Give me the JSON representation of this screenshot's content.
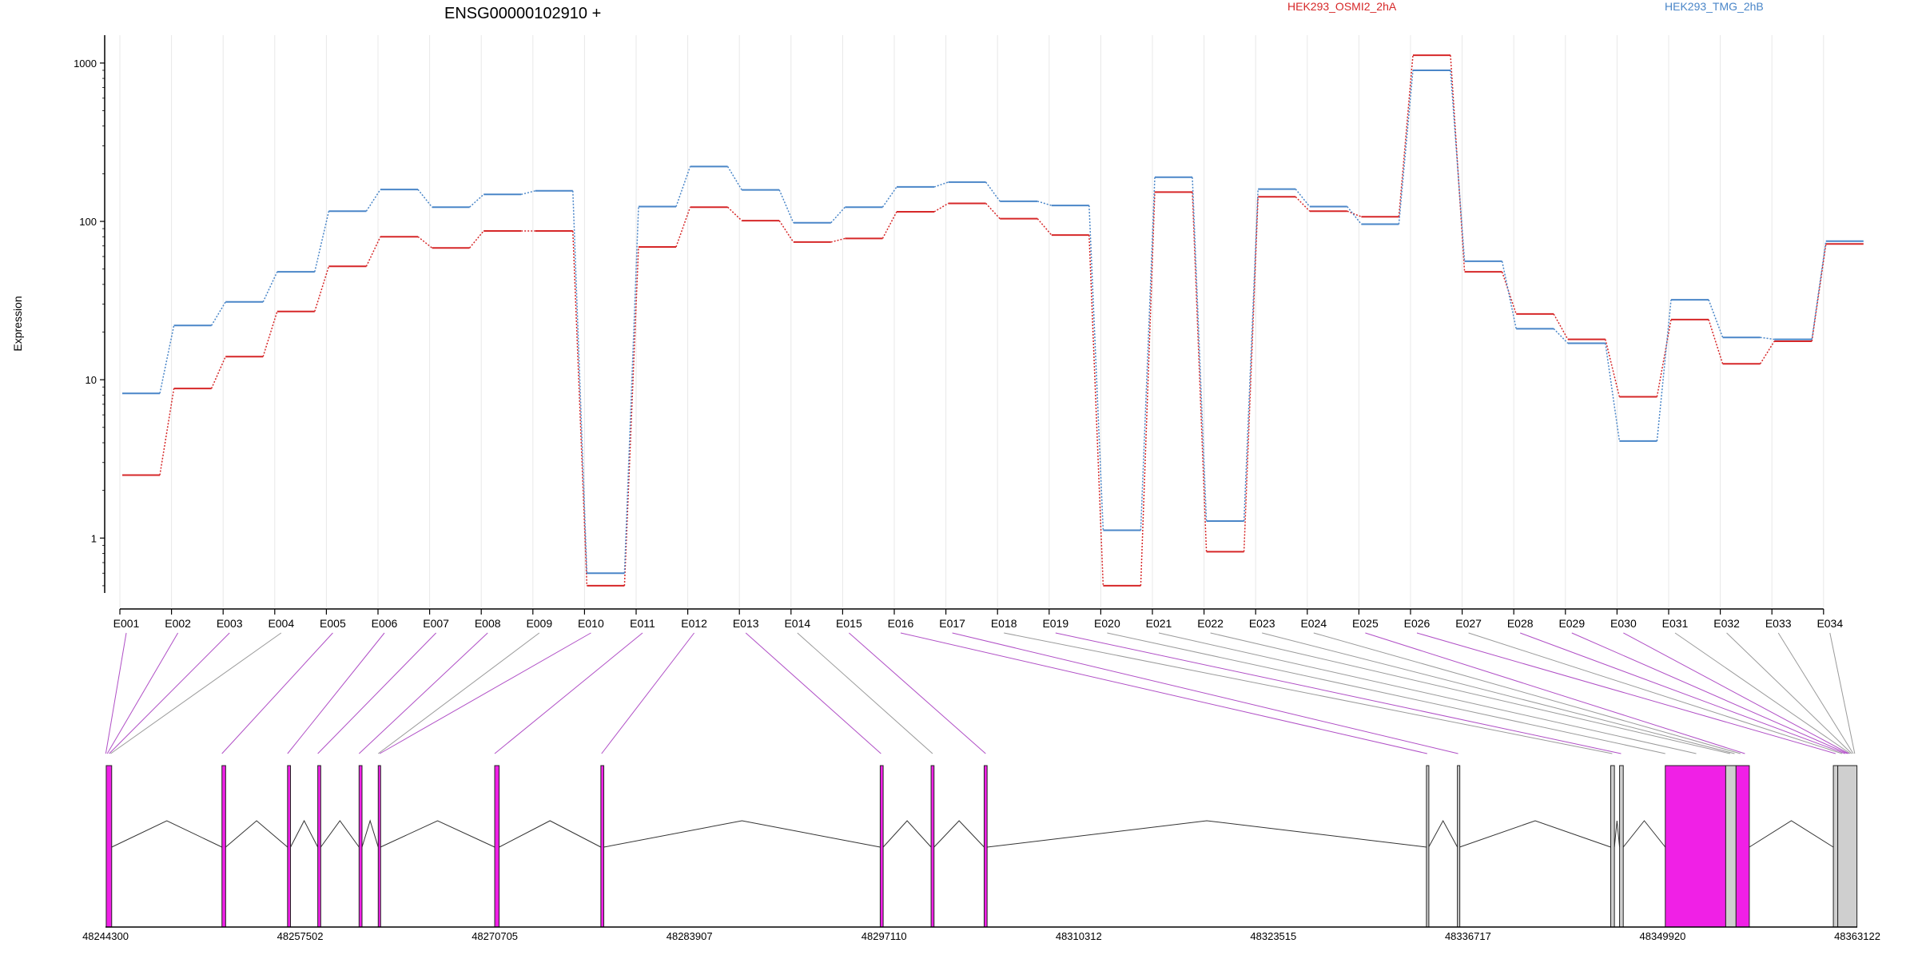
{
  "chart_data": {
    "type": "line",
    "title": "ENSG00000102910 +",
    "xlabel": "",
    "ylabel": "Expression",
    "y_scale": "log",
    "ylim": [
      0.45,
      1500
    ],
    "y_ticks": [
      {
        "value": 1,
        "label": "1"
      },
      {
        "value": 10,
        "label": "10"
      },
      {
        "value": 100,
        "label": "100"
      },
      {
        "value": 1000,
        "label": "1000"
      }
    ],
    "legend_placement": "top",
    "grid": "vertical",
    "categories": [
      "E001",
      "E002",
      "E003",
      "E004",
      "E005",
      "E006",
      "E007",
      "E008",
      "E009",
      "E010",
      "E011",
      "E012",
      "E013",
      "E014",
      "E015",
      "E016",
      "E017",
      "E018",
      "E019",
      "E020",
      "E021",
      "E022",
      "E023",
      "E024",
      "E025",
      "E026",
      "E027",
      "E028",
      "E029",
      "E030",
      "E031",
      "E032",
      "E033",
      "E034"
    ],
    "series": [
      {
        "name": "HEK293_OSMI2_2hA",
        "color": "#d62728",
        "values": [
          2.5,
          8.8,
          14,
          27,
          52,
          80,
          68,
          87,
          87,
          0.5,
          69,
          123,
          101,
          74,
          78,
          115,
          130,
          104,
          82,
          0.5,
          153,
          0.82,
          143,
          116,
          107,
          1120,
          48,
          26,
          18,
          7.8,
          24,
          12.6,
          17.5,
          72
        ]
      },
      {
        "name": "HEK293_TMG_2hB",
        "color": "#4a86c8",
        "values": [
          8.2,
          22,
          31,
          48,
          116,
          159,
          123,
          148,
          156,
          0.6,
          124,
          222,
          158,
          98,
          123,
          165,
          177,
          134,
          126,
          1.12,
          190,
          1.28,
          160,
          124,
          96,
          900,
          56,
          21,
          17,
          4.1,
          32,
          18.5,
          18,
          75
        ]
      }
    ],
    "exon_mapping_colors": [
      "purple",
      "purple",
      "purple",
      "gray",
      "purple",
      "purple",
      "purple",
      "purple",
      "gray",
      "purple",
      "purple",
      "purple",
      "purple",
      "gray",
      "purple",
      "purple",
      "purple",
      "gray",
      "purple",
      "gray",
      "gray",
      "gray",
      "gray",
      "gray",
      "purple",
      "purple",
      "gray",
      "purple",
      "purple",
      "purple",
      "gray",
      "gray",
      "gray",
      "gray"
    ],
    "genomic_axis": {
      "range": [
        48244300,
        48363122
      ],
      "ticks": [
        "48244300",
        "48257502",
        "48270705",
        "48283907",
        "48297110",
        "48310312",
        "48323515",
        "48336717",
        "48349920",
        "48363122"
      ]
    },
    "gene_model": {
      "exons": [
        {
          "start": 48244350,
          "end": 48244720,
          "fill": "magenta"
        },
        {
          "start": 48252200,
          "end": 48252450,
          "fill": "magenta"
        },
        {
          "start": 48256650,
          "end": 48256850,
          "fill": "magenta"
        },
        {
          "start": 48258700,
          "end": 48258900,
          "fill": "magenta"
        },
        {
          "start": 48261500,
          "end": 48261700,
          "fill": "magenta"
        },
        {
          "start": 48262800,
          "end": 48262950,
          "fill": "magenta"
        },
        {
          "start": 48270700,
          "end": 48271000,
          "fill": "magenta"
        },
        {
          "start": 48277900,
          "end": 48278100,
          "fill": "magenta"
        },
        {
          "start": 48296850,
          "end": 48297050,
          "fill": "magenta"
        },
        {
          "start": 48300300,
          "end": 48300500,
          "fill": "magenta"
        },
        {
          "start": 48303900,
          "end": 48304100,
          "fill": "magenta"
        },
        {
          "start": 48333900,
          "end": 48334050,
          "fill": "gray"
        },
        {
          "start": 48336000,
          "end": 48336150,
          "fill": "gray"
        },
        {
          "start": 48346400,
          "end": 48346650,
          "fill": "gray"
        },
        {
          "start": 48347000,
          "end": 48347250,
          "fill": "gray"
        },
        {
          "start": 48350100,
          "end": 48354200,
          "fill": "magenta"
        },
        {
          "start": 48354200,
          "end": 48354900,
          "fill": "gray"
        },
        {
          "start": 48354900,
          "end": 48355800,
          "fill": "magenta"
        },
        {
          "start": 48361500,
          "end": 48361800,
          "fill": "gray"
        },
        {
          "start": 48361800,
          "end": 48363100,
          "fill": "gray"
        }
      ],
      "connector_targets": [
        48244320,
        48244420,
        48244550,
        48244650,
        48252200,
        48256650,
        48258700,
        48261500,
        48262800,
        48262900,
        48270700,
        48277950,
        48296900,
        48300400,
        48304000,
        48333950,
        48336050,
        48346500,
        48347100,
        48350100,
        48352200,
        48354500,
        48354800,
        48355200,
        48355500,
        48361650,
        48362100,
        48362300,
        48362450,
        48362550,
        48362650,
        48362750,
        48362850,
        48362950
      ]
    }
  }
}
